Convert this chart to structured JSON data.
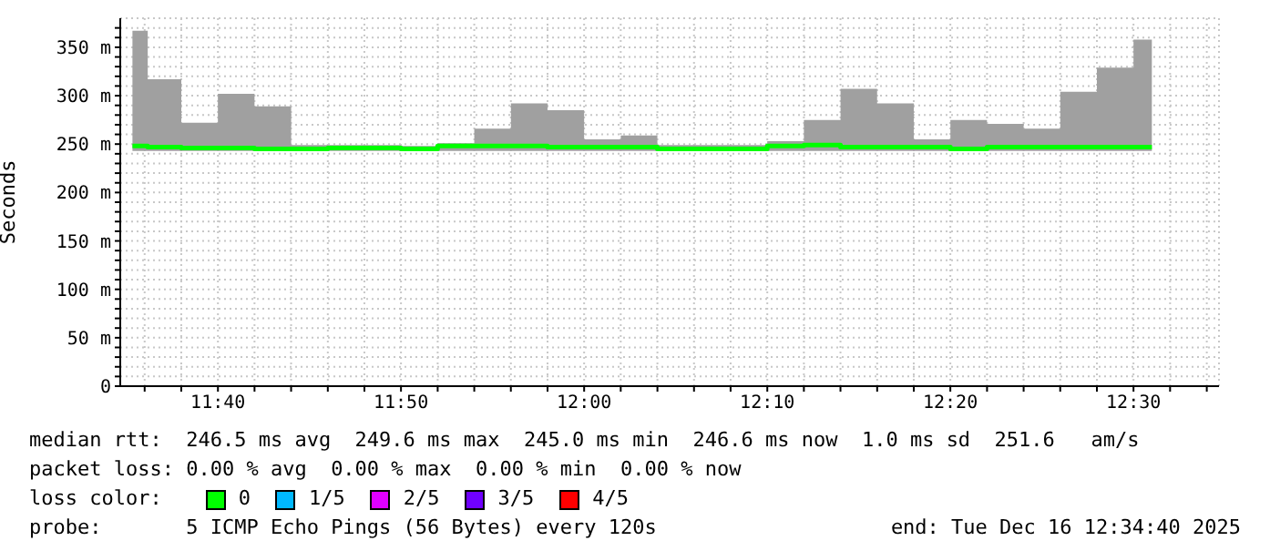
{
  "chart_data": {
    "type": "step",
    "ylabel": "Seconds",
    "x": [
      11.5889,
      11.6167,
      11.65,
      11.6833,
      11.7167,
      11.75,
      11.7833,
      11.8167,
      11.85,
      11.8833,
      11.9167,
      11.95,
      11.9833,
      12.0167,
      12.05,
      12.0833,
      12.1167,
      12.15,
      12.1833,
      12.2167,
      12.25,
      12.2833,
      12.3167,
      12.35,
      12.3833,
      12.4167,
      12.45,
      12.4833,
      12.5167
    ],
    "series": [
      {
        "color": "#00ff00",
        "values": [
          248,
          247,
          246,
          246,
          245,
          245,
          246,
          246,
          245,
          248,
          248,
          248,
          247,
          247,
          247,
          245,
          245,
          245,
          248,
          249,
          247,
          247,
          247,
          245,
          247,
          247,
          247,
          247,
          247
        ],
        "lower": [
          243,
          243,
          243,
          243,
          243,
          243,
          243,
          243,
          243,
          243,
          243,
          243,
          243,
          243,
          243,
          243,
          243,
          243,
          243,
          243,
          243,
          243,
          243,
          243,
          243,
          243,
          243,
          243,
          243
        ],
        "upper": [
          367,
          317,
          272,
          302,
          289,
          249,
          249,
          249,
          248,
          251,
          266,
          292,
          285,
          255,
          259,
          249,
          249,
          249,
          253,
          275,
          307,
          292,
          255,
          275,
          271,
          266,
          304,
          329,
          358
        ]
      }
    ],
    "xlim": [
      11.5778,
      12.5778
    ],
    "xticks": [
      {
        "value": 11.6,
        "label": null
      },
      {
        "value": 11.6333,
        "label": null
      },
      {
        "value": 11.6667,
        "label": "11:40"
      },
      {
        "value": 11.7,
        "label": null
      },
      {
        "value": 11.7333,
        "label": null
      },
      {
        "value": 11.7667,
        "label": null
      },
      {
        "value": 11.8,
        "label": null
      },
      {
        "value": 11.8333,
        "label": "11:50"
      },
      {
        "value": 11.8667,
        "label": null
      },
      {
        "value": 11.9,
        "label": null
      },
      {
        "value": 11.9333,
        "label": null
      },
      {
        "value": 11.9667,
        "label": null
      },
      {
        "value": 12,
        "label": "12:00"
      },
      {
        "value": 12.0333,
        "label": null
      },
      {
        "value": 12.0667,
        "label": null
      },
      {
        "value": 12.1,
        "label": null
      },
      {
        "value": 12.1333,
        "label": null
      },
      {
        "value": 12.1667,
        "label": "12:10"
      },
      {
        "value": 12.2,
        "label": null
      },
      {
        "value": 12.2333,
        "label": null
      },
      {
        "value": 12.2667,
        "label": null
      },
      {
        "value": 12.3,
        "label": null
      },
      {
        "value": 12.3333,
        "label": "12:20"
      },
      {
        "value": 12.3667,
        "label": null
      },
      {
        "value": 12.4,
        "label": null
      },
      {
        "value": 12.4333,
        "label": null
      },
      {
        "value": 12.4667,
        "label": null
      },
      {
        "value": 12.5,
        "label": "12:30"
      },
      {
        "value": 12.5333,
        "label": null
      },
      {
        "value": 12.5667,
        "label": null
      }
    ],
    "ylim": [
      0,
      380
    ],
    "yticks": [
      0,
      {
        "value": 10,
        "label": null
      },
      {
        "value": 20,
        "label": null
      },
      {
        "value": 30,
        "label": null
      },
      {
        "value": 40,
        "label": null
      },
      {
        "value": 50,
        "label": "50 m"
      },
      {
        "value": 60,
        "label": null
      },
      {
        "value": 70,
        "label": null
      },
      {
        "value": 80,
        "label": null
      },
      {
        "value": 90,
        "label": null
      },
      {
        "value": 100,
        "label": "100 m"
      },
      {
        "value": 110,
        "label": null
      },
      {
        "value": 120,
        "label": null
      },
      {
        "value": 130,
        "label": null
      },
      {
        "value": 140,
        "label": null
      },
      {
        "value": 150,
        "label": "150 m"
      },
      {
        "value": 160,
        "label": null
      },
      {
        "value": 170,
        "label": null
      },
      {
        "value": 180,
        "label": null
      },
      {
        "value": 190,
        "label": null
      },
      {
        "value": 200,
        "label": "200 m"
      },
      {
        "value": 210,
        "label": null
      },
      {
        "value": 220,
        "label": null
      },
      {
        "value": 230,
        "label": null
      },
      {
        "value": 240,
        "label": null
      },
      {
        "value": 250,
        "label": "250 m"
      },
      {
        "value": 260,
        "label": null
      },
      {
        "value": 270,
        "label": null
      },
      {
        "value": 280,
        "label": null
      },
      {
        "value": 290,
        "label": null
      },
      {
        "value": 300,
        "label": "300 m"
      },
      {
        "value": 310,
        "label": null
      },
      {
        "value": 320,
        "label": null
      },
      {
        "value": 330,
        "label": null
      },
      {
        "value": 340,
        "label": null
      },
      {
        "value": 350,
        "label": "350 m"
      },
      {
        "value": 360,
        "label": null
      },
      {
        "value": 370,
        "label": null
      }
    ],
    "grid": true,
    "legend": false,
    "annotations": [
      "median rtt:  246.5 ms avg  249.6 ms max  245.0 ms min  246.6 ms now  1.0 ms sd  251.6   am/s",
      "packet loss: 0.00 % avg  0.00 % max  0.00 % min  0.00 % now",
      "loss color:",
      "0",
      "1/5",
      "2/5",
      "3/5",
      "4/5",
      "probe:       5 ICMP Echo Pings (56 Bytes) every 120s",
      "end: Tue Dec 16 12:34:40 2025"
    ]
  }
}
